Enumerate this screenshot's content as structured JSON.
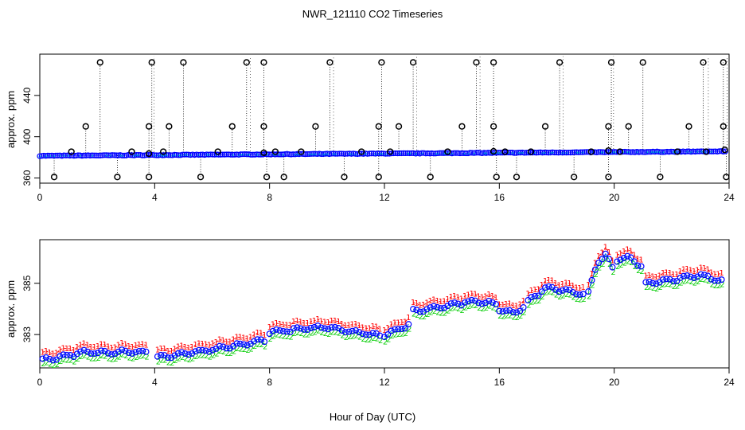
{
  "figure": {
    "title": "NWR_121110  CO2 Timeseries",
    "xlabel": "Hour of Day (UTC)"
  },
  "chart_data": [
    {
      "type": "scatter",
      "panel": "top",
      "title": "NWR_121110  CO2 Timeseries",
      "xlabel": "",
      "ylabel": "approx. ppm",
      "xlim": [
        0,
        24
      ],
      "ylim": [
        355,
        480
      ],
      "xticks": [
        0,
        4,
        8,
        12,
        16,
        20,
        24
      ],
      "yticks": [
        360,
        400,
        440
      ],
      "flagged_high": [
        2.1,
        3.9,
        5.0,
        7.2,
        7.8,
        10.1,
        11.9,
        13.0,
        15.2,
        15.8,
        18.1,
        19.9,
        21.0,
        23.1,
        23.8
      ],
      "flagged_mid": [
        1.6,
        3.8,
        4.5,
        6.7,
        7.8,
        9.6,
        11.8,
        12.5,
        14.7,
        15.8,
        17.6,
        19.8,
        20.5,
        22.6,
        23.8
      ],
      "flagged_low": [
        0.5,
        2.7,
        3.8,
        5.6,
        7.9,
        8.5,
        10.6,
        11.8,
        13.6,
        15.9,
        16.6,
        18.6,
        19.8,
        21.6,
        23.9
      ],
      "flagged_small": [
        1.1,
        3.2,
        4.3,
        6.2,
        8.2,
        9.1,
        11.2,
        12.2,
        14.2,
        16.2,
        17.1,
        19.2,
        20.2,
        22.2,
        23.2
      ],
      "baseline": {
        "start_hour": 0.0,
        "end_hour": 23.9,
        "start_ppm": 381.5,
        "end_ppm": 385.8
      }
    },
    {
      "type": "line",
      "panel": "bottom",
      "xlabel": "Hour of Day (UTC)",
      "ylabel": "approx. ppm",
      "xlim": [
        0,
        24
      ],
      "ylim": [
        381.7,
        386.7
      ],
      "xticks": [
        0,
        4,
        8,
        12,
        16,
        20,
        24
      ],
      "yticks": [
        383,
        385
      ],
      "series": [
        {
          "name": "1",
          "color": "#ff0000",
          "offset": 0.25
        },
        {
          "name": "o",
          "color": "#0000ff",
          "offset": 0.0
        },
        {
          "name": "2",
          "color": "#00cc00",
          "offset": -0.08
        }
      ],
      "segments": [
        {
          "start": 0.1,
          "end": 3.8,
          "pts": [
            [
              0.1,
              382.0
            ],
            [
              0.8,
              382.15
            ],
            [
              1.5,
              382.3
            ],
            [
              2.3,
              382.3
            ],
            [
              3.0,
              382.35
            ],
            [
              3.8,
              382.3
            ]
          ]
        },
        {
          "start": 4.1,
          "end": 7.9,
          "pts": [
            [
              4.1,
              382.1
            ],
            [
              5.0,
              382.25
            ],
            [
              6.0,
              382.4
            ],
            [
              7.0,
              382.6
            ],
            [
              7.9,
              382.8
            ]
          ]
        },
        {
          "start": 8.0,
          "end": 11.9,
          "pts": [
            [
              8.0,
              383.1
            ],
            [
              9.0,
              383.2
            ],
            [
              10.0,
              383.3
            ],
            [
              11.0,
              383.1
            ],
            [
              11.9,
              382.95
            ]
          ]
        },
        {
          "start": 12.0,
          "end": 12.9,
          "pts": [
            [
              12.0,
              383.0
            ],
            [
              12.9,
              383.4
            ]
          ]
        },
        {
          "start": 13.0,
          "end": 15.9,
          "pts": [
            [
              13.0,
              383.9
            ],
            [
              14.0,
              384.1
            ],
            [
              15.0,
              384.3
            ],
            [
              15.9,
              384.2
            ]
          ]
        },
        {
          "start": 16.0,
          "end": 16.9,
          "pts": [
            [
              16.0,
              384.0
            ],
            [
              16.5,
              383.85
            ],
            [
              16.9,
              384.1
            ]
          ]
        },
        {
          "start": 17.0,
          "end": 19.0,
          "pts": [
            [
              17.0,
              384.3
            ],
            [
              17.6,
              384.8
            ],
            [
              18.2,
              384.75
            ],
            [
              19.0,
              384.55
            ]
          ]
        },
        {
          "start": 19.1,
          "end": 20.0,
          "pts": [
            [
              19.1,
              384.6
            ],
            [
              19.4,
              385.8
            ],
            [
              19.7,
              386.1
            ],
            [
              20.0,
              385.5
            ]
          ]
        },
        {
          "start": 20.1,
          "end": 21.0,
          "pts": [
            [
              20.1,
              385.9
            ],
            [
              20.6,
              386.0
            ],
            [
              21.0,
              385.6
            ]
          ]
        },
        {
          "start": 21.1,
          "end": 23.8,
          "pts": [
            [
              21.1,
              385.0
            ],
            [
              22.0,
              385.15
            ],
            [
              23.0,
              385.3
            ],
            [
              23.8,
              385.1
            ]
          ]
        }
      ]
    }
  ]
}
